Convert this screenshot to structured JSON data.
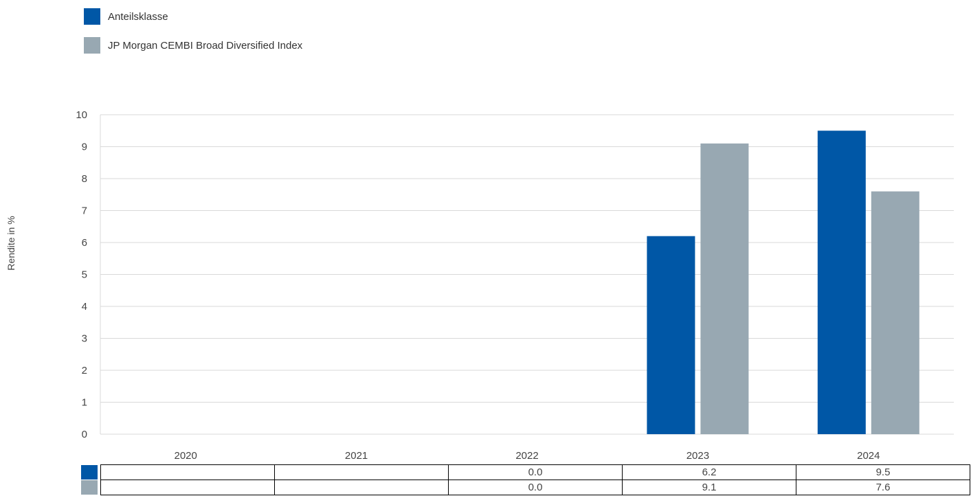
{
  "chart_data": {
    "type": "bar",
    "categories": [
      "2020",
      "2021",
      "2022",
      "2023",
      "2024"
    ],
    "series": [
      {
        "name": "Anteilsklasse",
        "color": "#0057A6",
        "values": [
          null,
          null,
          0.0,
          6.2,
          9.5
        ],
        "table": [
          "",
          "",
          "0.0",
          "6.2",
          "9.5"
        ]
      },
      {
        "name": "JP Morgan CEMBI Broad Diversified Index",
        "color": "#98A8B2",
        "values": [
          null,
          null,
          0.0,
          9.1,
          7.6
        ],
        "table": [
          "",
          "",
          "0.0",
          "9.1",
          "7.6"
        ]
      }
    ],
    "ylabel": "Rendite in %",
    "ylim": [
      0,
      10
    ],
    "yticks": [
      "0",
      "1",
      "2",
      "3",
      "4",
      "5",
      "6",
      "7",
      "8",
      "9",
      "10"
    ],
    "grid": true,
    "legend": "top-left"
  }
}
